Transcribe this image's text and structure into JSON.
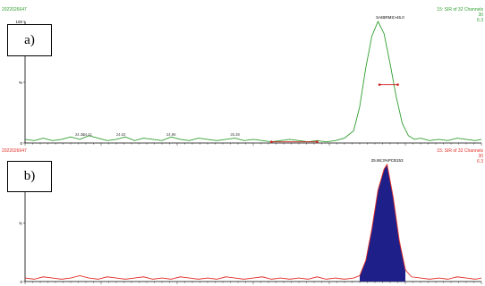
{
  "colors": {
    "panel_a_trace": "#2f9e2f",
    "panel_b_trace": "#e0302a",
    "peak_fill": "#1f1f8a",
    "axis": "#000000"
  },
  "chart_data": [
    {
      "type": "line",
      "panel_label": "a)",
      "header_left": "2022026647",
      "header_right_1": "15: SIR of 32 Channels",
      "header_right_2": "30",
      "header_right_3": "6.3",
      "y_tick_labels": [
        "100",
        "%",
        "0"
      ],
      "peak_label": "SAIBRMS>46.0",
      "peak_x": 26.4,
      "small_labels": [
        {
          "x": 24.36,
          "text": "24.36"
        },
        {
          "x": 24.41,
          "text": "24.41"
        },
        {
          "x": 24.63,
          "text": "24.63"
        },
        {
          "x": 24.96,
          "text": "24.96"
        },
        {
          "x": 25.38,
          "text": "25.38"
        }
      ],
      "xlim": [
        24.0,
        27.0
      ],
      "ylim": [
        0,
        100
      ],
      "x": [
        24.0,
        24.06,
        24.12,
        24.18,
        24.24,
        24.3,
        24.36,
        24.42,
        24.48,
        24.54,
        24.6,
        24.66,
        24.72,
        24.78,
        24.84,
        24.9,
        24.96,
        25.02,
        25.08,
        25.14,
        25.2,
        25.26,
        25.32,
        25.38,
        25.44,
        25.5,
        25.56,
        25.62,
        25.68,
        25.74,
        25.8,
        25.86,
        25.92,
        25.98,
        26.04,
        26.1,
        26.16,
        26.2,
        26.24,
        26.28,
        26.32,
        26.36,
        26.4,
        26.44,
        26.48,
        26.52,
        26.56,
        26.6,
        26.66,
        26.72,
        26.78,
        26.84,
        26.9,
        26.96,
        27.0
      ],
      "y": [
        3,
        2,
        4,
        2,
        3,
        5,
        3,
        6,
        4,
        2,
        3,
        5,
        2,
        4,
        3,
        2,
        5,
        3,
        2,
        4,
        3,
        2,
        3,
        4,
        2,
        3,
        2,
        1,
        2,
        3,
        2,
        1,
        2,
        1,
        2,
        4,
        10,
        30,
        62,
        88,
        100,
        90,
        65,
        38,
        16,
        6,
        3,
        4,
        2,
        3,
        2,
        4,
        3,
        2,
        3
      ],
      "markers": [
        {
          "x": 25.62,
          "y": 1
        },
        {
          "x": 25.92,
          "y": 1
        },
        {
          "x": 26.33,
          "y": 48
        },
        {
          "x": 26.45,
          "y": 48
        }
      ]
    },
    {
      "type": "area",
      "panel_label": "b)",
      "header_left": "2022026647",
      "header_right_1": "15: SIR of 32 Channels",
      "header_right_2": "30",
      "header_right_3": "6.3",
      "y_tick_labels": [
        "100",
        "%",
        "0"
      ],
      "peak_label": "25.86;3%PCB153",
      "peak_x": 26.38,
      "xlim": [
        24.0,
        27.0
      ],
      "ylim": [
        0,
        100
      ],
      "x": [
        24.0,
        24.06,
        24.12,
        24.18,
        24.24,
        24.3,
        24.36,
        24.42,
        24.48,
        24.54,
        24.6,
        24.66,
        24.72,
        24.78,
        24.84,
        24.9,
        24.96,
        25.02,
        25.08,
        25.14,
        25.2,
        25.26,
        25.32,
        25.38,
        25.44,
        25.5,
        25.56,
        25.62,
        25.68,
        25.74,
        25.8,
        25.86,
        25.92,
        25.98,
        26.04,
        26.1,
        26.16,
        26.2,
        26.24,
        26.28,
        26.32,
        26.36,
        26.38,
        26.42,
        26.46,
        26.5,
        26.54,
        26.6,
        26.66,
        26.72,
        26.78,
        26.84,
        26.9,
        26.96,
        27.0
      ],
      "y": [
        3,
        2,
        4,
        3,
        2,
        3,
        5,
        3,
        2,
        4,
        3,
        2,
        3,
        4,
        2,
        3,
        2,
        4,
        3,
        2,
        3,
        2,
        4,
        3,
        2,
        3,
        4,
        2,
        3,
        2,
        3,
        2,
        4,
        2,
        3,
        2,
        3,
        5,
        18,
        45,
        78,
        96,
        100,
        72,
        35,
        10,
        4,
        3,
        2,
        3,
        2,
        4,
        3,
        2,
        3
      ],
      "integrated_range": [
        26.2,
        26.5
      ]
    }
  ]
}
